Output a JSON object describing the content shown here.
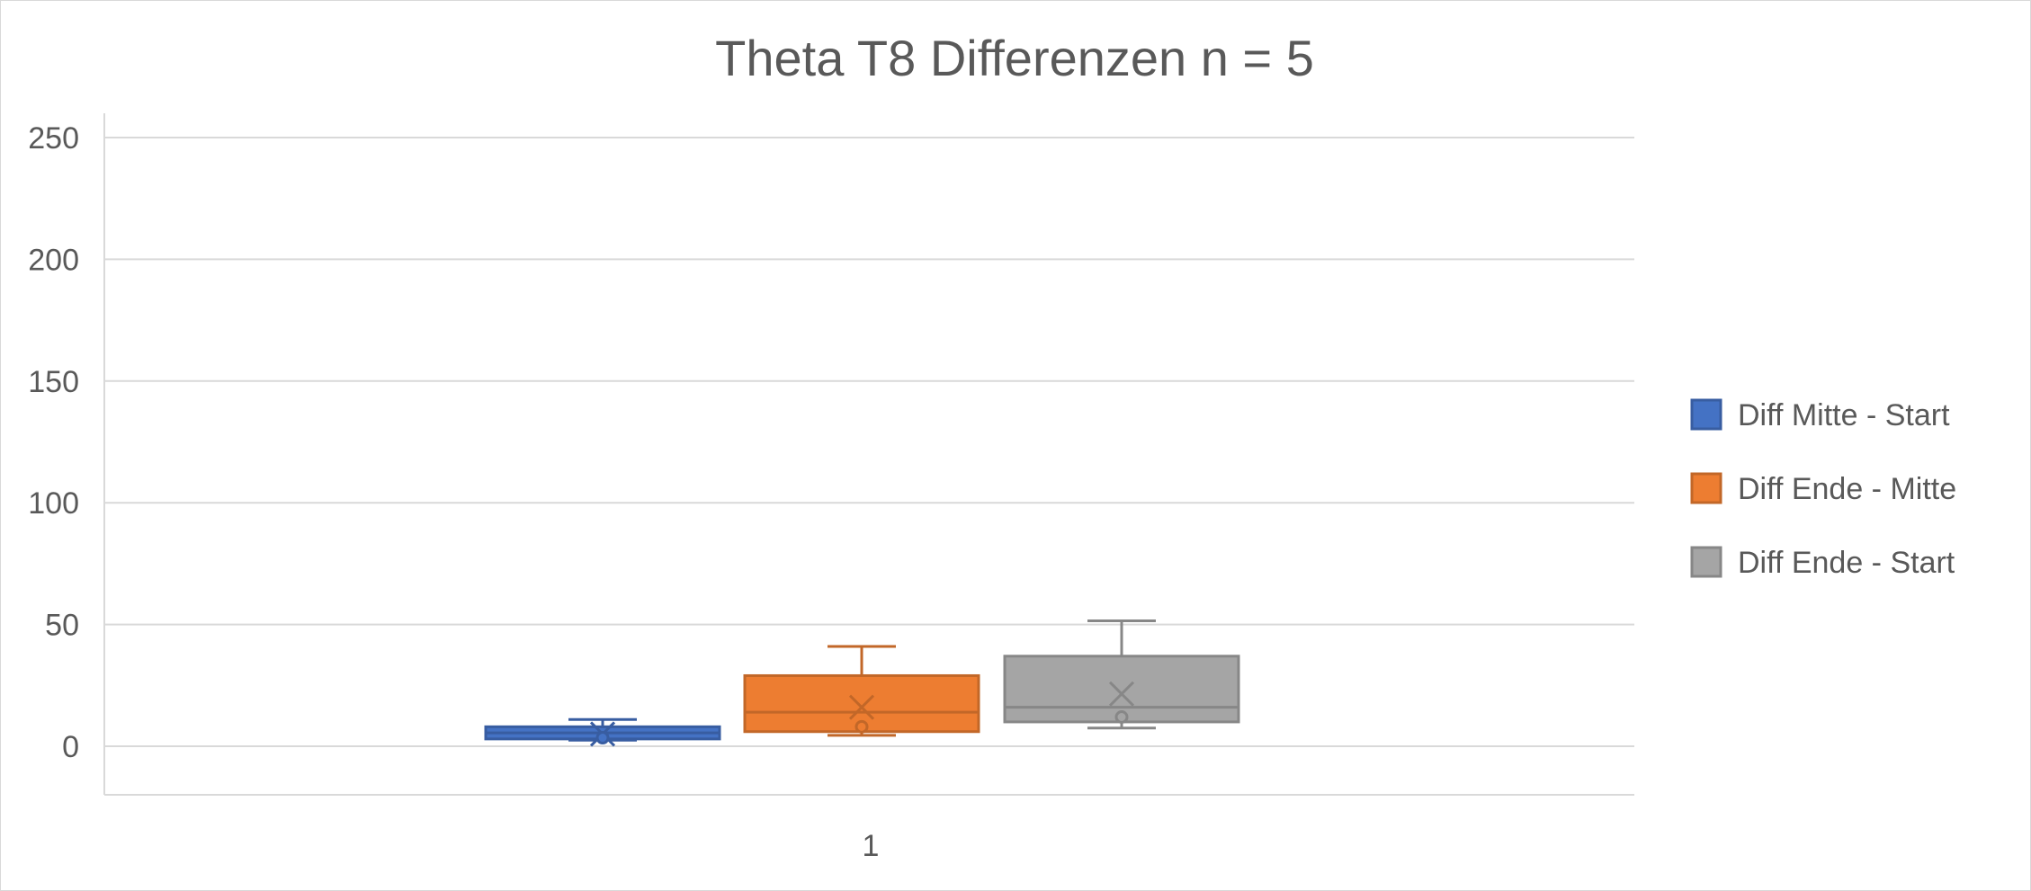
{
  "chart_data": {
    "type": "box",
    "title": "Theta T8 Differenzen n = 5",
    "xlabel": "",
    "ylabel": "",
    "categories": [
      "1"
    ],
    "ylim": [
      -20,
      260
    ],
    "yticks": [
      0,
      50,
      100,
      150,
      200,
      250
    ],
    "grid": true,
    "legend_position": "right",
    "series": [
      {
        "name": "Diff Mitte - Start",
        "color": "#4472C4",
        "min": 2.5,
        "q1": 3,
        "median": 5.5,
        "q3": 8,
        "max": 11,
        "mean": 5,
        "outliers": [
          3.5
        ]
      },
      {
        "name": "Diff Ende - Mitte",
        "color": "#ED7D31",
        "min": 4.5,
        "q1": 6,
        "median": 14,
        "q3": 29,
        "max": 41,
        "mean": 16,
        "outliers": [
          8
        ]
      },
      {
        "name": "Diff Ende - Start",
        "color": "#A5A5A5",
        "min": 7.5,
        "q1": 10,
        "median": 16,
        "q3": 37,
        "max": 51.5,
        "mean": 21.5,
        "outliers": [
          12
        ]
      }
    ]
  }
}
